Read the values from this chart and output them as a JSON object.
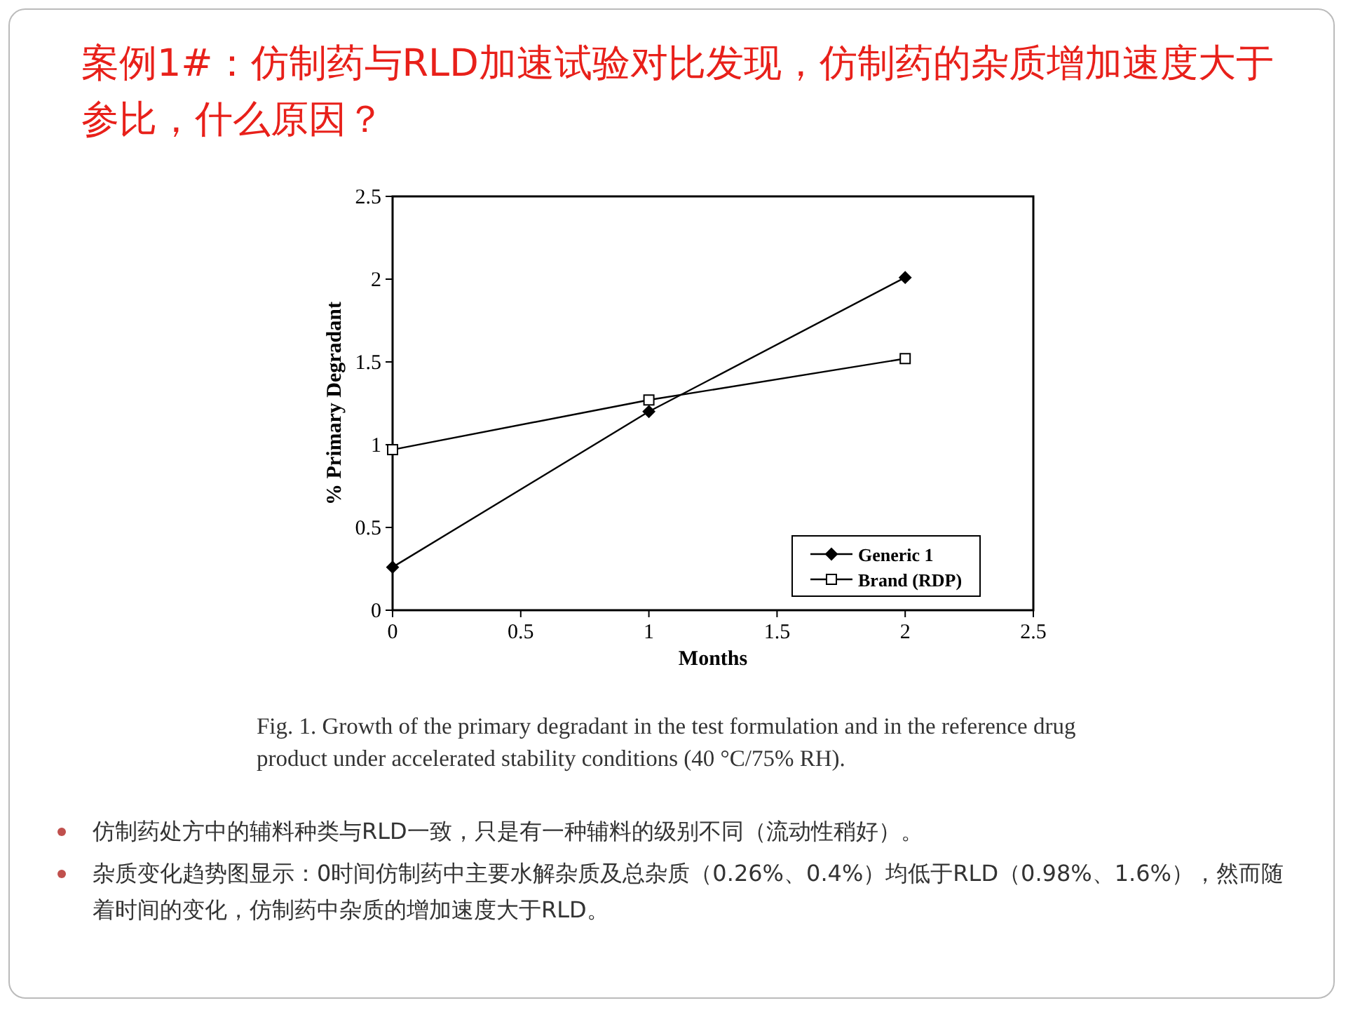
{
  "chart_data": {
    "type": "line",
    "title": "案例1#：仿制药与RLD加速试验对比发现，仿制药的杂质增加速度大于参比，什么原因？",
    "xlabel": "Months",
    "ylabel": "% Primary Degradant",
    "x": [
      0,
      1,
      2
    ],
    "xlim": [
      0,
      2.5
    ],
    "xticks": [
      0,
      0.5,
      1,
      1.5,
      2,
      2.5
    ],
    "ylim": [
      0,
      2.5
    ],
    "yticks": [
      0,
      0.5,
      1,
      1.5,
      2,
      2.5
    ],
    "legend": "bottom right",
    "series": [
      {
        "name": "Generic 1",
        "color": "#000000",
        "marker": "diamond",
        "values": [
          0.26,
          1.2,
          2.01
        ]
      },
      {
        "name": "Brand (RDP)",
        "color": "#000000",
        "marker": "square",
        "values": [
          0.97,
          1.27,
          1.52
        ]
      }
    ],
    "annotations": [
      "Fig. 1. Growth of the primary degradant in the test formulation and in the reference drug product under accelerated stability conditions (40 °C/75% RH).",
      "仿制药处方中的辅料种类与RLD一致，只是有一种辅料的级别不同（流动性稍好）。",
      "杂质变化趋势图显示：0时间仿制药中主要水解杂质及总杂质（0.26%、0.4%）均低于RLD（0.98%、1.6%），然而随着时间的变化，仿制药中杂质的增加速度大于RLD。"
    ]
  }
}
